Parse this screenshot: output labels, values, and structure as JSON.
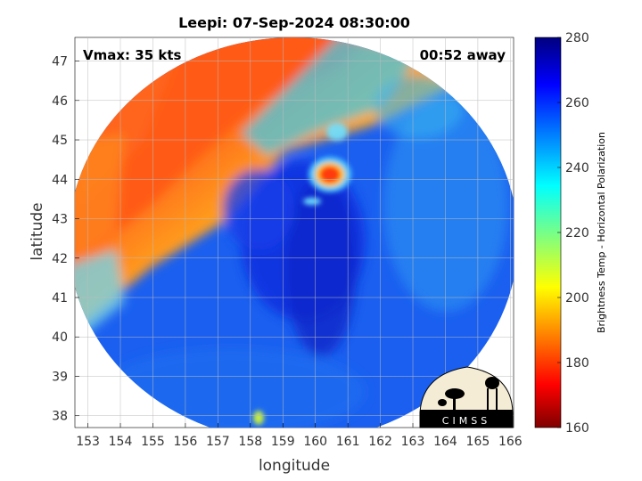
{
  "chart_data": {
    "type": "heatmap",
    "title": "Leepi: 07-Sep-2024 08:30:00",
    "xlabel": "longitude",
    "ylabel": "latitude",
    "xlim": [
      152.6,
      166.1
    ],
    "ylim": [
      37.7,
      47.6
    ],
    "x_ticks": [
      153,
      154,
      155,
      156,
      157,
      158,
      159,
      160,
      161,
      162,
      163,
      164,
      165,
      166
    ],
    "y_ticks": [
      38,
      39,
      40,
      41,
      42,
      43,
      44,
      45,
      46,
      47
    ],
    "grid": true,
    "annotations": {
      "vmax": "Vmax: 35 kts",
      "time_away": "00:52 away"
    },
    "colorbar": {
      "label": "Brightness Temp - Horizontal Polarization",
      "range": [
        160,
        280
      ],
      "ticks": [
        160,
        180,
        200,
        220,
        240,
        260,
        280
      ],
      "colormap": "jet"
    },
    "swath_center": [
      159.3,
      42.6
    ],
    "features": [
      {
        "name": "cold-cloud-band",
        "lon": 155.0,
        "lat": 44.5,
        "value": 185
      },
      {
        "name": "convective-core",
        "lon": 160.4,
        "lat": 44.1,
        "value": 180
      },
      {
        "name": "storm-center",
        "lon": 159.8,
        "lat": 42.2,
        "value": 270
      }
    ],
    "logo_text": "CIMSS"
  }
}
